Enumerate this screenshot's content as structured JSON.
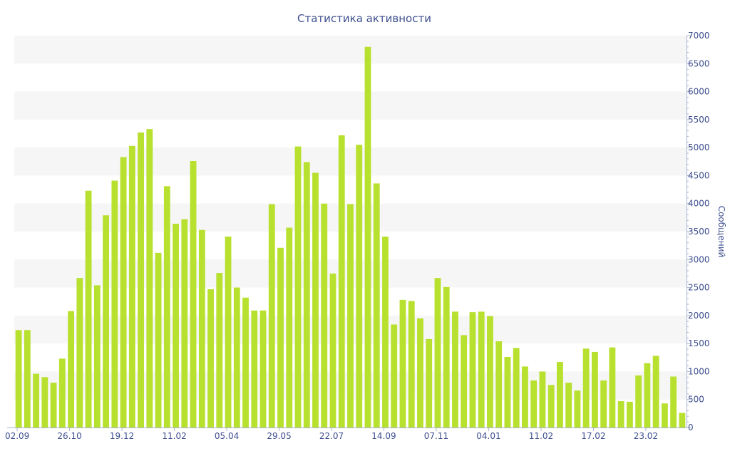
{
  "chart_data": {
    "type": "bar",
    "title": "Статистика активности",
    "ylabel": "Сообщений",
    "xlabel": "",
    "ylim": [
      0,
      7000
    ],
    "y_ticks": [
      0,
      500,
      1000,
      1500,
      2000,
      2500,
      3000,
      3500,
      4000,
      4500,
      5000,
      5500,
      6000,
      6500,
      7000
    ],
    "y_axis_side": "right",
    "x_tick_labels": [
      {
        "index": 0,
        "label": "02.09"
      },
      {
        "index": 6,
        "label": "26.10"
      },
      {
        "index": 12,
        "label": "19.12"
      },
      {
        "index": 18,
        "label": "11.02"
      },
      {
        "index": 24,
        "label": "05.04"
      },
      {
        "index": 30,
        "label": "29.05"
      },
      {
        "index": 36,
        "label": "22.07"
      },
      {
        "index": 42,
        "label": "14.09"
      },
      {
        "index": 48,
        "label": "07.11"
      },
      {
        "index": 54,
        "label": "04.01"
      },
      {
        "index": 60,
        "label": "11.02"
      },
      {
        "index": 66,
        "label": "17.02"
      },
      {
        "index": 72,
        "label": "23.02"
      }
    ],
    "values": [
      1740,
      1740,
      960,
      900,
      800,
      1230,
      2080,
      2670,
      4230,
      2540,
      3790,
      4410,
      4830,
      5030,
      5270,
      5330,
      3120,
      4310,
      3640,
      3720,
      4760,
      3530,
      2470,
      2760,
      3410,
      2500,
      2320,
      2090,
      2090,
      3990,
      3210,
      3570,
      5020,
      4740,
      4550,
      4000,
      2750,
      5220,
      3990,
      5050,
      6800,
      4360,
      3410,
      1840,
      2280,
      2260,
      1950,
      1580,
      2670,
      2510,
      2070,
      1650,
      2060,
      2070,
      1990,
      1540,
      1260,
      1420,
      1090,
      840,
      1000,
      760,
      1170,
      800,
      660,
      1410,
      1350,
      840,
      1430,
      470,
      460,
      930,
      1150,
      1280,
      430,
      910,
      260
    ],
    "bar_color": "#b8e02e",
    "grid": "alternating-bands",
    "legend": "none"
  }
}
